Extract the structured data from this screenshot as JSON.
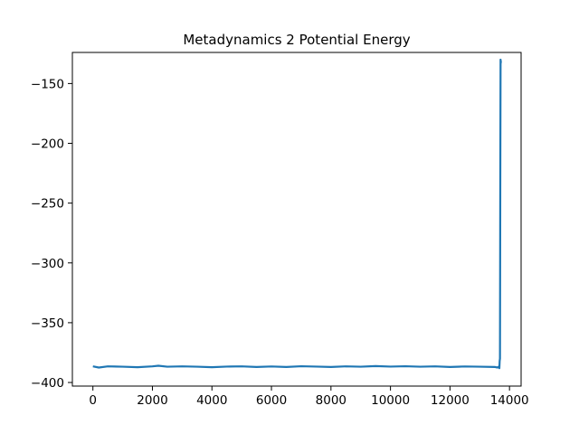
{
  "chart_data": {
    "type": "line",
    "title": "Metadynamics 2 Potential Energy",
    "xlabel": "",
    "ylabel": "",
    "xlim": [
      -690,
      14390
    ],
    "ylim": [
      -403,
      -124
    ],
    "xticks": [
      0,
      2000,
      4000,
      6000,
      8000,
      10000,
      12000,
      14000
    ],
    "yticks": [
      -150,
      -200,
      -250,
      -300,
      -350,
      -400
    ],
    "ytick_labels": [
      "−150",
      "−200",
      "−250",
      "−300",
      "−350",
      "−400"
    ],
    "grid": false,
    "series": [
      {
        "color": "#1f77b4",
        "x": [
          0,
          200,
          500,
          1000,
          1500,
          2000,
          2200,
          2500,
          3000,
          3500,
          4000,
          4500,
          5000,
          5500,
          6000,
          6500,
          7000,
          7500,
          8000,
          8500,
          9000,
          9500,
          10000,
          10500,
          11000,
          11500,
          12000,
          12500,
          13000,
          13500,
          13600,
          13650,
          13660,
          13670,
          13680,
          13690,
          13700,
          13705,
          13710
        ],
        "values": [
          -386.5,
          -387.5,
          -386.5,
          -386.8,
          -387.2,
          -386.5,
          -386.0,
          -386.8,
          -386.5,
          -386.8,
          -387.2,
          -386.7,
          -386.5,
          -387.0,
          -386.6,
          -387.0,
          -386.4,
          -386.7,
          -387.0,
          -386.5,
          -386.8,
          -386.3,
          -386.7,
          -386.4,
          -386.8,
          -386.5,
          -387.0,
          -386.6,
          -386.8,
          -387.0,
          -387.5,
          -386.5,
          -388.0,
          -382.0,
          -380.0,
          -239.0,
          -130.0,
          -133.0,
          -131.0
        ]
      }
    ]
  }
}
